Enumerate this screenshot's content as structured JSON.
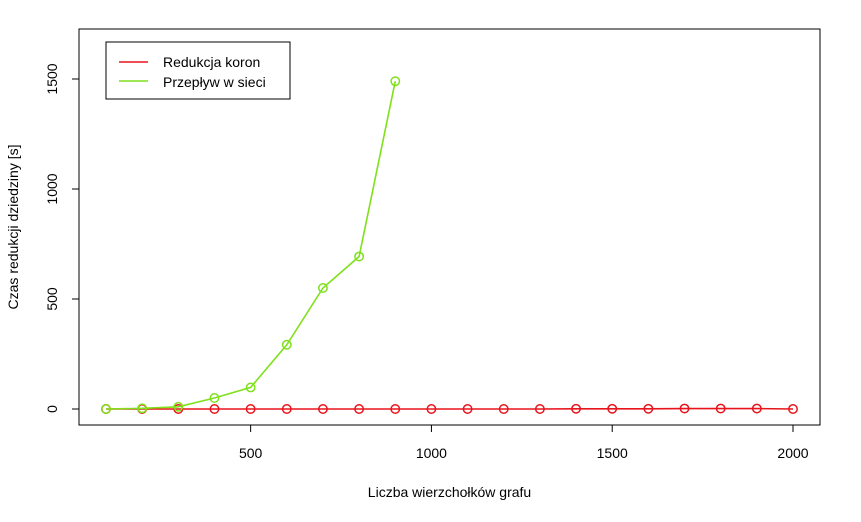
{
  "chart_data": {
    "type": "line",
    "xlabel": "Liczba wierzchołków grafu",
    "ylabel": "Czas redukcji dziedziny [s]",
    "xlim": [
      100,
      2000
    ],
    "ylim": [
      0,
      1500
    ],
    "x_ticks": [
      500,
      1000,
      1500,
      2000
    ],
    "y_ticks": [
      0,
      500,
      1000,
      1500
    ],
    "legend_position": "top-left",
    "grid": false,
    "series": [
      {
        "name": "Redukcja koron",
        "color": "#e8141b",
        "x": [
          100,
          200,
          300,
          400,
          500,
          600,
          700,
          800,
          900,
          1000,
          1100,
          1200,
          1300,
          1400,
          1500,
          1600,
          1700,
          1800,
          1900,
          2000
        ],
        "y": [
          0,
          0,
          0,
          0,
          0,
          0,
          0,
          0,
          0,
          0,
          0,
          0,
          0,
          1,
          1,
          1,
          2,
          2,
          2,
          0
        ]
      },
      {
        "name": "Przepływ w sieci",
        "color": "#7fe11b",
        "x": [
          100,
          200,
          300,
          400,
          500,
          600,
          700,
          800,
          900
        ],
        "y": [
          0,
          3,
          10,
          50,
          98,
          292,
          550,
          693,
          1490
        ]
      }
    ]
  }
}
